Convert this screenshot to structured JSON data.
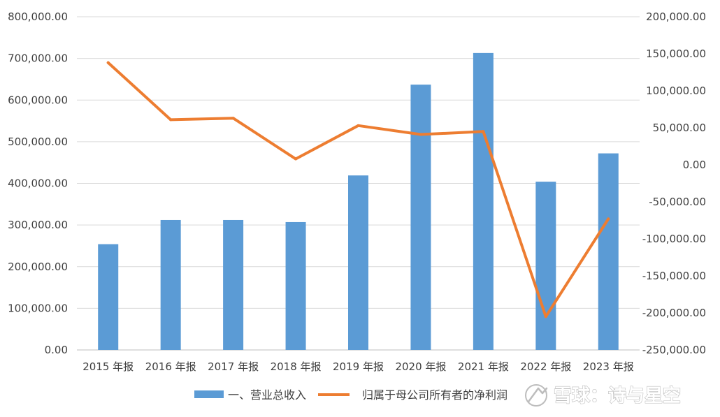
{
  "chart_data": {
    "type": "bar+line",
    "title": "",
    "categories": [
      "2015 年报",
      "2016 年报",
      "2017 年报",
      "2018 年报",
      "2019 年报",
      "2020 年报",
      "2021 年报",
      "2022 年报",
      "2023 年报"
    ],
    "series": [
      {
        "name": "一、营业总收入",
        "type": "bar",
        "axis": "left",
        "color": "#5b9bd5",
        "values": [
          254000,
          312000,
          312000,
          307000,
          419000,
          637000,
          713000,
          404000,
          472000
        ]
      },
      {
        "name": "归属于母公司所有者的净利润",
        "type": "line",
        "axis": "right",
        "color": "#ed7d31",
        "values": [
          138000,
          61000,
          63000,
          8000,
          53000,
          41000,
          45000,
          -205000,
          -73000
        ]
      }
    ],
    "y_left": {
      "min": 0,
      "max": 800000,
      "ticks": [
        "800,000.00",
        "700,000.00",
        "600,000.00",
        "500,000.00",
        "400,000.00",
        "300,000.00",
        "200,000.00",
        "100,000.00",
        "0.00"
      ]
    },
    "y_right": {
      "min": -250000,
      "max": 200000,
      "ticks": [
        "200,000.00",
        "150,000.00",
        "100,000.00",
        "50,000.00",
        "0.00",
        "-50,000.00",
        "-100,000.00",
        "-150,000.00",
        "-200,000.00",
        "-250,000.00"
      ]
    },
    "grid": true,
    "legend_position": "bottom"
  },
  "watermark": {
    "text": "雪球：诗与星空",
    "icon": "snowball-logo-icon"
  }
}
